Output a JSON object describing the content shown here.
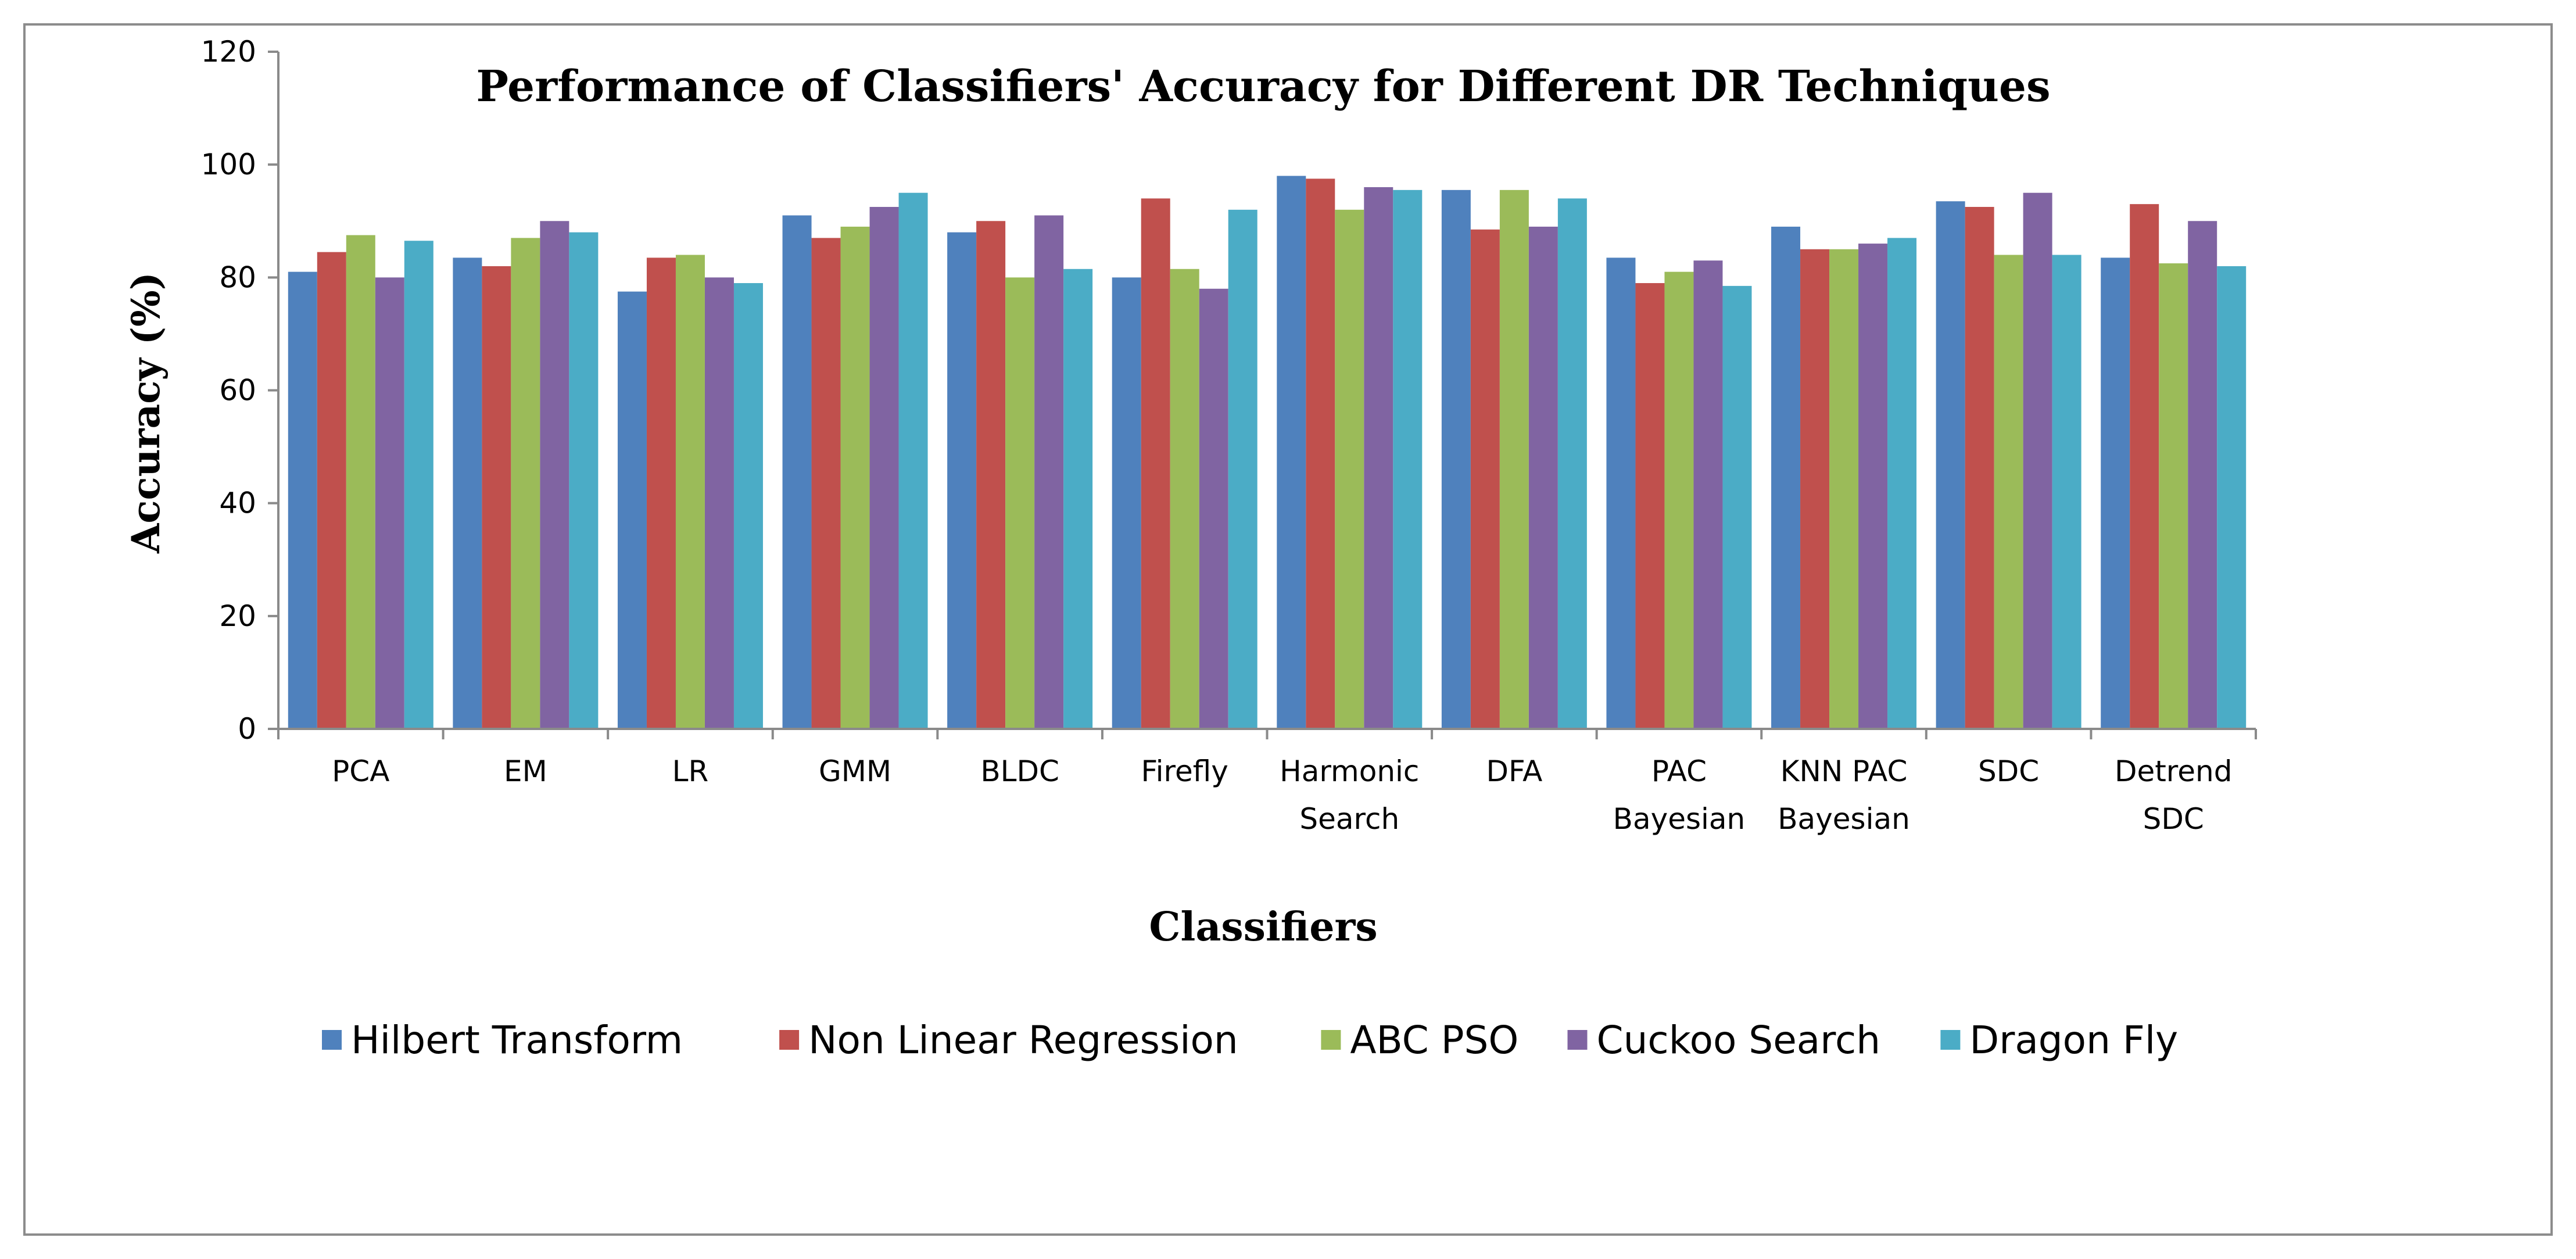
{
  "chart_data": {
    "type": "bar",
    "title": "Performance of Classifiers' Accuracy  for Different  DR Techniques",
    "xlabel": "Classifiers",
    "ylabel": "Accuracy  (%)",
    "ylim": [
      0,
      120
    ],
    "yticks": [
      0,
      20,
      40,
      60,
      80,
      100,
      120
    ],
    "grid": false,
    "legend_position": "bottom",
    "categories": [
      [
        "PCA"
      ],
      [
        "EM"
      ],
      [
        "LR"
      ],
      [
        "GMM"
      ],
      [
        "BLDC"
      ],
      [
        "Firefly"
      ],
      [
        "Harmonic",
        "Search"
      ],
      [
        "DFA"
      ],
      [
        "PAC",
        "Bayesian"
      ],
      [
        "KNN PAC",
        "Bayesian"
      ],
      [
        "SDC"
      ],
      [
        "Detrend",
        "SDC"
      ]
    ],
    "series": [
      {
        "name": "Hilbert Transform",
        "color": "#4f81bd",
        "values": [
          81,
          83.5,
          77.5,
          91,
          88,
          80,
          98,
          95.5,
          83.5,
          89,
          93.5,
          83.5
        ]
      },
      {
        "name": "Non Linear Regression",
        "color": "#c0504d",
        "values": [
          84.5,
          82,
          83.5,
          87,
          90,
          94,
          97.5,
          88.5,
          79,
          85,
          92.5,
          93
        ]
      },
      {
        "name": "ABC PSO",
        "color": "#9bbb59",
        "values": [
          87.5,
          87,
          84,
          89,
          80,
          81.5,
          92,
          95.5,
          81,
          85,
          84,
          82.5
        ]
      },
      {
        "name": "Cuckoo Search",
        "color": "#8064a2",
        "values": [
          80,
          90,
          80,
          92.5,
          91,
          78,
          96,
          89,
          83,
          86,
          95,
          90
        ]
      },
      {
        "name": "Dragon Fly",
        "color": "#4bacc6",
        "values": [
          86.5,
          88,
          79,
          95,
          81.5,
          92,
          95.5,
          94,
          78.5,
          87,
          84,
          82
        ]
      }
    ]
  }
}
